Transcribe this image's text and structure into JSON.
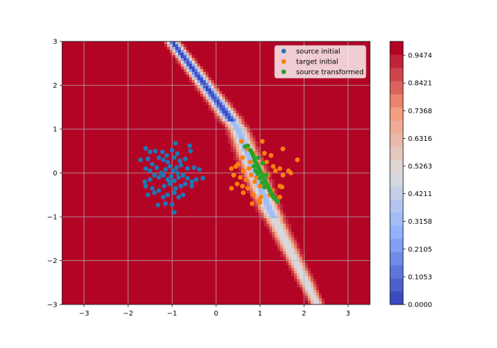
{
  "chart_data": {
    "type": "scatter",
    "title": "",
    "xlabel": "",
    "ylabel": "",
    "xlim": [
      -3.5,
      3.5
    ],
    "ylim": [
      -3,
      3
    ],
    "xticks": [
      -3,
      -2,
      -1,
      0,
      1,
      2,
      3
    ],
    "xtick_labels": [
      "−3",
      "−2",
      "−1",
      "0",
      "1",
      "2",
      "3"
    ],
    "yticks": [
      -3,
      -2,
      -1,
      0,
      1,
      2,
      3
    ],
    "ytick_labels": [
      "−3",
      "−2",
      "−1",
      "0",
      "1",
      "2",
      "3"
    ],
    "grid": true,
    "legend_position": "upper right",
    "background_contour": {
      "colormap": "coolwarm",
      "description": "filled contour of a decision function; low values form a diagonal band",
      "band_centerline": [
        [
          -1.0,
          3.0
        ],
        [
          0.5,
          1.0
        ],
        [
          1.2,
          -0.8
        ],
        [
          2.3,
          -3.0
        ]
      ],
      "colorbar": {
        "min": 0.0,
        "max": 1.0,
        "ticks": [
          0.0,
          0.1053,
          0.2105,
          0.3158,
          0.4211,
          0.5263,
          0.6316,
          0.7368,
          0.8421,
          0.9474
        ],
        "tick_labels": [
          "0.0000",
          "0.1053",
          "0.2105",
          "0.3158",
          "0.4211",
          "0.5263",
          "0.6316",
          "0.7368",
          "0.8421",
          "0.9474"
        ],
        "levels": 20
      }
    },
    "series": [
      {
        "name": "source initial",
        "color": "#1f77b4",
        "points": [
          [
            -1.6,
            0.56
          ],
          [
            -1.5,
            0.48
          ],
          [
            -1.38,
            0.5
          ],
          [
            -1.22,
            0.48
          ],
          [
            -1.0,
            0.52
          ],
          [
            -0.88,
            0.44
          ],
          [
            -0.6,
            0.62
          ],
          [
            -0.58,
            0.5
          ],
          [
            -1.72,
            0.3
          ],
          [
            -1.55,
            0.32
          ],
          [
            -1.45,
            0.2
          ],
          [
            -1.3,
            0.35
          ],
          [
            -1.2,
            0.3
          ],
          [
            -1.1,
            0.25
          ],
          [
            -0.95,
            0.35
          ],
          [
            -0.82,
            0.28
          ],
          [
            -0.7,
            0.32
          ],
          [
            -1.6,
            0.1
          ],
          [
            -1.5,
            0.05
          ],
          [
            -1.35,
            0.12
          ],
          [
            -1.25,
            0.0
          ],
          [
            -1.15,
            0.08
          ],
          [
            -1.05,
            0.15
          ],
          [
            -0.98,
            0.05
          ],
          [
            -0.9,
            0.12
          ],
          [
            -0.8,
            0.18
          ],
          [
            -0.65,
            0.1
          ],
          [
            -0.5,
            0.12
          ],
          [
            -0.38,
            0.08
          ],
          [
            -1.62,
            -0.2
          ],
          [
            -1.5,
            -0.15
          ],
          [
            -1.4,
            -0.05
          ],
          [
            -1.3,
            -0.1
          ],
          [
            -1.2,
            -0.05
          ],
          [
            -1.1,
            -0.15
          ],
          [
            -1.02,
            -0.08
          ],
          [
            -0.95,
            -0.18
          ],
          [
            -0.85,
            -0.1
          ],
          [
            -0.75,
            -0.05
          ],
          [
            -0.65,
            -0.12
          ],
          [
            -0.55,
            -0.2
          ],
          [
            -0.45,
            -0.15
          ],
          [
            -0.3,
            -0.12
          ],
          [
            -1.6,
            -0.3
          ],
          [
            -1.45,
            -0.35
          ],
          [
            -1.3,
            -0.4
          ],
          [
            -1.18,
            -0.3
          ],
          [
            -1.05,
            -0.25
          ],
          [
            -0.92,
            -0.35
          ],
          [
            -0.8,
            -0.3
          ],
          [
            -0.7,
            -0.25
          ],
          [
            -0.55,
            -0.3
          ],
          [
            -1.55,
            -0.5
          ],
          [
            -1.4,
            -0.45
          ],
          [
            -1.2,
            -0.55
          ],
          [
            -1.1,
            -0.5
          ],
          [
            -0.95,
            -0.45
          ],
          [
            -0.85,
            -0.55
          ],
          [
            -0.75,
            -0.5
          ],
          [
            -1.32,
            -0.73
          ],
          [
            -1.15,
            -0.7
          ],
          [
            -1.0,
            -0.72
          ],
          [
            -0.95,
            -0.9
          ],
          [
            -0.92,
            0.68
          ],
          [
            -1.05,
            -0.2
          ],
          [
            -0.88,
            0.0
          ],
          [
            -1.12,
            0.4
          ]
        ]
      },
      {
        "name": "target initial",
        "color": "#ff7f0e",
        "points": [
          [
            0.58,
            0.72
          ],
          [
            1.05,
            0.72
          ],
          [
            1.52,
            0.55
          ],
          [
            0.7,
            0.55
          ],
          [
            1.25,
            0.4
          ],
          [
            0.85,
            0.45
          ],
          [
            0.35,
            0.1
          ],
          [
            0.45,
            0.15
          ],
          [
            0.5,
            0.2
          ],
          [
            0.62,
            0.05
          ],
          [
            0.75,
            0.1
          ],
          [
            0.95,
            0.2
          ],
          [
            1.15,
            0.25
          ],
          [
            1.3,
            0.15
          ],
          [
            1.45,
            0.1
          ],
          [
            1.65,
            0.05
          ],
          [
            1.85,
            0.3
          ],
          [
            1.7,
            0.0
          ],
          [
            0.4,
            -0.05
          ],
          [
            0.55,
            -0.1
          ],
          [
            0.68,
            -0.15
          ],
          [
            0.8,
            -0.05
          ],
          [
            0.92,
            -0.1
          ],
          [
            1.05,
            0.0
          ],
          [
            1.18,
            -0.05
          ],
          [
            1.35,
            0.05
          ],
          [
            1.52,
            -0.05
          ],
          [
            0.35,
            -0.35
          ],
          [
            0.48,
            -0.25
          ],
          [
            0.6,
            -0.3
          ],
          [
            0.72,
            -0.35
          ],
          [
            0.88,
            -0.2
          ],
          [
            1.0,
            -0.3
          ],
          [
            1.12,
            -0.25
          ],
          [
            1.28,
            -0.4
          ],
          [
            1.45,
            -0.3
          ],
          [
            1.5,
            -0.32
          ],
          [
            0.62,
            -0.45
          ],
          [
            0.85,
            -0.5
          ],
          [
            1.02,
            -0.55
          ],
          [
            1.22,
            -0.5
          ],
          [
            1.35,
            -0.6
          ],
          [
            1.45,
            -0.55
          ],
          [
            0.82,
            -0.7
          ],
          [
            0.98,
            -0.62
          ],
          [
            1.0,
            -0.67
          ],
          [
            0.6,
            0.35
          ],
          [
            1.1,
            0.45
          ],
          [
            0.78,
            0.25
          ]
        ]
      },
      {
        "name": "source transformed",
        "color": "#2ca02c",
        "points": [
          [
            0.66,
            0.6
          ],
          [
            0.72,
            0.62
          ],
          [
            0.78,
            0.52
          ],
          [
            0.82,
            0.45
          ],
          [
            0.85,
            0.38
          ],
          [
            0.88,
            0.3
          ],
          [
            0.9,
            0.25
          ],
          [
            0.92,
            0.2
          ],
          [
            0.86,
            0.15
          ],
          [
            0.95,
            0.15
          ],
          [
            0.98,
            0.1
          ],
          [
            0.9,
            0.05
          ],
          [
            1.0,
            0.05
          ],
          [
            1.02,
            0.0
          ],
          [
            0.95,
            -0.02
          ],
          [
            1.05,
            -0.05
          ],
          [
            1.08,
            -0.1
          ],
          [
            1.0,
            -0.12
          ],
          [
            1.1,
            -0.15
          ],
          [
            1.12,
            -0.2
          ],
          [
            1.05,
            -0.22
          ],
          [
            1.15,
            -0.25
          ],
          [
            1.18,
            -0.3
          ],
          [
            1.1,
            -0.32
          ],
          [
            1.2,
            -0.35
          ],
          [
            1.22,
            -0.4
          ],
          [
            1.28,
            -0.5
          ],
          [
            1.3,
            -0.55
          ],
          [
            1.35,
            -0.6
          ],
          [
            1.4,
            -0.65
          ],
          [
            1.25,
            -0.45
          ],
          [
            0.96,
            0.35
          ],
          [
            1.06,
            0.22
          ],
          [
            1.14,
            -0.05
          ]
        ]
      }
    ]
  }
}
